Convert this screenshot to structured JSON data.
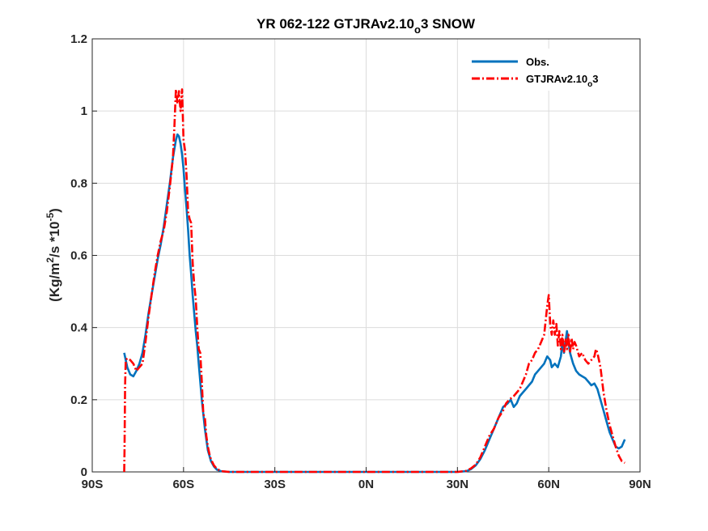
{
  "chart_data": {
    "type": "line",
    "title_main": "YR 062-122 GTJRAv2.10",
    "title_sub": "o",
    "title_tail": "3 SNOW",
    "ylabel_main": "(Kg/m",
    "ylabel_sup1": "2",
    "ylabel_mid": "/s *10",
    "ylabel_sup2": "-5",
    "ylabel_tail": ")",
    "xlim": [
      -90,
      90
    ],
    "ylim": [
      0,
      1.2
    ],
    "xticks": [
      -90,
      -60,
      -30,
      0,
      30,
      60,
      90
    ],
    "xtick_labels": [
      "90S",
      "60S",
      "30S",
      "0N",
      "30N",
      "60N",
      "90N"
    ],
    "yticks": [
      0,
      0.2,
      0.4,
      0.6,
      0.8,
      1.0,
      1.2
    ],
    "ytick_labels": [
      "0",
      "0.2",
      "0.4",
      "0.6",
      "0.8",
      "1",
      "1.2"
    ],
    "grid": true,
    "legend_position": "top-right",
    "series": [
      {
        "name": "Obs.",
        "color": "#0072BD",
        "style": "solid",
        "points": [
          [
            -79.5,
            0.33
          ],
          [
            -78.5,
            0.29
          ],
          [
            -77.5,
            0.27
          ],
          [
            -76.5,
            0.265
          ],
          [
            -75.5,
            0.28
          ],
          [
            -74.5,
            0.3
          ],
          [
            -73.5,
            0.33
          ],
          [
            -72.5,
            0.38
          ],
          [
            -71.5,
            0.44
          ],
          [
            -70.5,
            0.49
          ],
          [
            -69.5,
            0.54
          ],
          [
            -68.5,
            0.59
          ],
          [
            -67.5,
            0.63
          ],
          [
            -66.5,
            0.68
          ],
          [
            -65.5,
            0.74
          ],
          [
            -64.5,
            0.8
          ],
          [
            -63.5,
            0.87
          ],
          [
            -62.5,
            0.92
          ],
          [
            -62.0,
            0.935
          ],
          [
            -61.5,
            0.93
          ],
          [
            -61.0,
            0.91
          ],
          [
            -60.5,
            0.88
          ],
          [
            -60.0,
            0.84
          ],
          [
            -59.5,
            0.78
          ],
          [
            -59.0,
            0.73
          ],
          [
            -58.5,
            0.67
          ],
          [
            -58.0,
            0.6
          ],
          [
            -57.5,
            0.55
          ],
          [
            -57.0,
            0.49
          ],
          [
            -56.5,
            0.44
          ],
          [
            -56.0,
            0.39
          ],
          [
            -55.5,
            0.35
          ],
          [
            -55.0,
            0.3
          ],
          [
            -54.5,
            0.25
          ],
          [
            -54.0,
            0.2
          ],
          [
            -53.5,
            0.16
          ],
          [
            -53.0,
            0.12
          ],
          [
            -52.5,
            0.09
          ],
          [
            -52.0,
            0.06
          ],
          [
            -51.5,
            0.045
          ],
          [
            -51.0,
            0.03
          ],
          [
            -50.0,
            0.015
          ],
          [
            -49.0,
            0.006
          ],
          [
            -47.5,
            0.0015
          ],
          [
            -45.0,
            0.0
          ],
          [
            0.0,
            0.0
          ],
          [
            30.0,
            0.0
          ],
          [
            33.0,
            0.002
          ],
          [
            34.5,
            0.008
          ],
          [
            36.0,
            0.018
          ],
          [
            37.5,
            0.035
          ],
          [
            39.0,
            0.06
          ],
          [
            40.5,
            0.09
          ],
          [
            42.0,
            0.12
          ],
          [
            43.5,
            0.15
          ],
          [
            45.0,
            0.18
          ],
          [
            46.5,
            0.19
          ],
          [
            47.5,
            0.2
          ],
          [
            48.5,
            0.18
          ],
          [
            49.5,
            0.19
          ],
          [
            50.5,
            0.21
          ],
          [
            51.5,
            0.22
          ],
          [
            52.5,
            0.23
          ],
          [
            53.5,
            0.24
          ],
          [
            54.5,
            0.25
          ],
          [
            55.5,
            0.27
          ],
          [
            56.5,
            0.28
          ],
          [
            57.5,
            0.29
          ],
          [
            58.5,
            0.3
          ],
          [
            59.5,
            0.32
          ],
          [
            60.5,
            0.31
          ],
          [
            61.0,
            0.29
          ],
          [
            62.0,
            0.3
          ],
          [
            63.0,
            0.29
          ],
          [
            64.0,
            0.32
          ],
          [
            64.5,
            0.36
          ],
          [
            65.0,
            0.33
          ],
          [
            66.0,
            0.39
          ],
          [
            66.5,
            0.36
          ],
          [
            67.0,
            0.33
          ],
          [
            68.0,
            0.3
          ],
          [
            69.0,
            0.28
          ],
          [
            70.0,
            0.27
          ],
          [
            71.0,
            0.265
          ],
          [
            72.0,
            0.26
          ],
          [
            73.0,
            0.25
          ],
          [
            74.0,
            0.24
          ],
          [
            75.0,
            0.245
          ],
          [
            76.0,
            0.23
          ],
          [
            77.0,
            0.2
          ],
          [
            78.0,
            0.17
          ],
          [
            79.0,
            0.14
          ],
          [
            80.0,
            0.11
          ],
          [
            81.0,
            0.09
          ],
          [
            82.0,
            0.07
          ],
          [
            83.0,
            0.065
          ],
          [
            84.0,
            0.07
          ],
          [
            85.0,
            0.09
          ]
        ]
      },
      {
        "name": "GTJRAv2.10o3",
        "color": "#FF0000",
        "style": "dashdot",
        "points": [
          [
            -79.5,
            0.0
          ],
          [
            -79.4,
            0.06
          ],
          [
            -79.2,
            0.24
          ],
          [
            -79.0,
            0.31
          ],
          [
            -78.5,
            0.315
          ],
          [
            -77.5,
            0.31
          ],
          [
            -76.5,
            0.3
          ],
          [
            -75.5,
            0.28
          ],
          [
            -74.5,
            0.29
          ],
          [
            -73.5,
            0.3
          ],
          [
            -72.5,
            0.36
          ],
          [
            -71.5,
            0.43
          ],
          [
            -70.5,
            0.49
          ],
          [
            -69.5,
            0.55
          ],
          [
            -68.5,
            0.6
          ],
          [
            -67.5,
            0.64
          ],
          [
            -66.5,
            0.67
          ],
          [
            -65.5,
            0.72
          ],
          [
            -64.5,
            0.79
          ],
          [
            -63.5,
            0.87
          ],
          [
            -63.0,
            0.96
          ],
          [
            -62.5,
            1.06
          ],
          [
            -62.0,
            1.02
          ],
          [
            -61.5,
            1.055
          ],
          [
            -61.0,
            1.0
          ],
          [
            -60.5,
            1.06
          ],
          [
            -60.0,
            0.92
          ],
          [
            -59.5,
            0.89
          ],
          [
            -59.0,
            0.82
          ],
          [
            -58.5,
            0.72
          ],
          [
            -58.0,
            0.7
          ],
          [
            -57.5,
            0.69
          ],
          [
            -57.0,
            0.58
          ],
          [
            -56.5,
            0.52
          ],
          [
            -56.0,
            0.48
          ],
          [
            -55.5,
            0.4
          ],
          [
            -55.0,
            0.34
          ],
          [
            -54.5,
            0.33
          ],
          [
            -54.0,
            0.25
          ],
          [
            -53.5,
            0.16
          ],
          [
            -53.0,
            0.15
          ],
          [
            -52.5,
            0.1
          ],
          [
            -52.0,
            0.07
          ],
          [
            -51.5,
            0.05
          ],
          [
            -51.0,
            0.035
          ],
          [
            -50.0,
            0.018
          ],
          [
            -49.0,
            0.008
          ],
          [
            -47.5,
            0.002
          ],
          [
            -45.0,
            0.0
          ],
          [
            0.0,
            0.0
          ],
          [
            30.0,
            0.0
          ],
          [
            33.0,
            0.003
          ],
          [
            34.5,
            0.01
          ],
          [
            36.0,
            0.02
          ],
          [
            37.5,
            0.04
          ],
          [
            39.0,
            0.07
          ],
          [
            40.5,
            0.1
          ],
          [
            42.0,
            0.12
          ],
          [
            43.5,
            0.15
          ],
          [
            45.0,
            0.17
          ],
          [
            46.0,
            0.19
          ],
          [
            47.0,
            0.2
          ],
          [
            48.5,
            0.21
          ],
          [
            49.5,
            0.22
          ],
          [
            50.5,
            0.23
          ],
          [
            51.5,
            0.25
          ],
          [
            52.5,
            0.27
          ],
          [
            53.5,
            0.3
          ],
          [
            54.5,
            0.31
          ],
          [
            55.5,
            0.33
          ],
          [
            56.5,
            0.34
          ],
          [
            57.5,
            0.36
          ],
          [
            58.5,
            0.38
          ],
          [
            59.0,
            0.42
          ],
          [
            59.5,
            0.46
          ],
          [
            60.0,
            0.49
          ],
          [
            60.5,
            0.41
          ],
          [
            61.0,
            0.38
          ],
          [
            61.5,
            0.42
          ],
          [
            62.0,
            0.38
          ],
          [
            62.5,
            0.41
          ],
          [
            63.0,
            0.35
          ],
          [
            63.5,
            0.39
          ],
          [
            64.0,
            0.34
          ],
          [
            64.5,
            0.38
          ],
          [
            65.0,
            0.33
          ],
          [
            65.5,
            0.37
          ],
          [
            66.0,
            0.34
          ],
          [
            66.5,
            0.38
          ],
          [
            67.0,
            0.33
          ],
          [
            67.5,
            0.37
          ],
          [
            68.0,
            0.34
          ],
          [
            68.5,
            0.36
          ],
          [
            69.0,
            0.35
          ],
          [
            70.0,
            0.32
          ],
          [
            71.0,
            0.33
          ],
          [
            72.0,
            0.31
          ],
          [
            73.0,
            0.3
          ],
          [
            74.0,
            0.31
          ],
          [
            75.0,
            0.32
          ],
          [
            75.5,
            0.34
          ],
          [
            76.0,
            0.33
          ],
          [
            77.0,
            0.29
          ],
          [
            78.0,
            0.22
          ],
          [
            79.0,
            0.17
          ],
          [
            80.0,
            0.13
          ],
          [
            81.0,
            0.1
          ],
          [
            82.0,
            0.07
          ],
          [
            83.0,
            0.045
          ],
          [
            84.0,
            0.03
          ],
          [
            85.0,
            0.025
          ]
        ]
      }
    ]
  }
}
